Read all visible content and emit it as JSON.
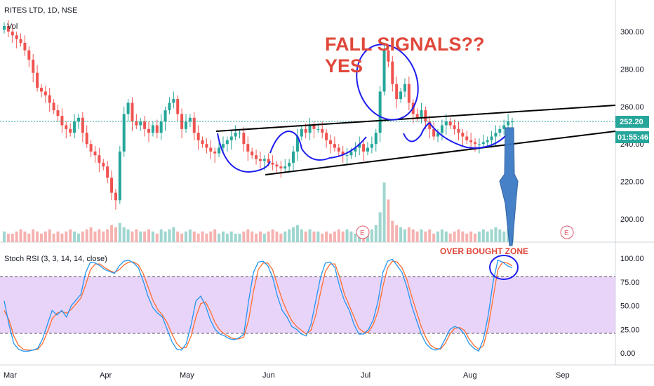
{
  "header": {
    "symbol_title": "RITES LTD, 1D, NSE",
    "vol_label": "Vol"
  },
  "price_axis": {
    "ticks": [
      "300.00",
      "280.00",
      "260.00",
      "240.00",
      "220.00",
      "200.00"
    ],
    "tick_values": [
      300,
      280,
      260,
      240,
      220,
      200
    ],
    "last_price": "252.20",
    "countdown": "01:55:46"
  },
  "rsi_panel": {
    "label": "Stoch RSI (3, 3, 14, 14, close)",
    "ticks": [
      "100.00",
      "75.00",
      "50.00",
      "25.00",
      "0.00"
    ],
    "tick_values": [
      100,
      75,
      50,
      25,
      0
    ],
    "upper_band": 80,
    "lower_band": 20
  },
  "time_axis": {
    "labels": [
      "Mar",
      "Apr",
      "May",
      "Jun",
      "Jul",
      "Aug",
      "Sep"
    ]
  },
  "annotations": {
    "fall_signals": "FALL SIGNALS??",
    "yes": "YES",
    "over_bought": "OVER BOUGHT ZONE",
    "earnings_marker": "E"
  },
  "colors": {
    "up": "#26a69a",
    "down": "#ef5350",
    "vol_up": "#9fd6cf",
    "vol_down": "#f5b2b0",
    "price_tag": "#26a69a",
    "rsi_k": "#2196f3",
    "rsi_d": "#ff6d2e",
    "rsi_band": "#e1c6f7",
    "annotation": "#e0473a",
    "circle": "#1d1df0",
    "arrow": "#3d7bc6"
  },
  "chart_data": {
    "type": "candlestick",
    "title": "RITES LTD, 1D, NSE",
    "ylim": [
      190,
      310
    ],
    "x_months": [
      "Mar",
      "Apr",
      "May",
      "Jun",
      "Jul",
      "Aug",
      "Sep"
    ],
    "close_series": [
      303,
      300,
      298,
      296,
      294,
      290,
      285,
      278,
      270,
      268,
      266,
      262,
      258,
      255,
      250,
      248,
      246,
      252,
      254,
      246,
      240,
      236,
      234,
      230,
      228,
      222,
      214,
      210,
      236,
      256,
      262,
      252,
      250,
      252,
      248,
      246,
      250,
      246,
      252,
      258,
      262,
      264,
      256,
      248,
      252,
      254,
      246,
      242,
      240,
      238,
      236,
      235,
      238,
      240,
      242,
      244,
      246,
      246,
      240,
      236,
      234,
      232,
      231,
      232,
      230,
      229,
      228,
      227,
      228,
      230,
      236,
      244,
      248,
      246,
      250,
      248,
      248,
      246,
      242,
      240,
      238,
      236,
      234,
      234,
      236,
      238,
      240,
      236,
      238,
      240,
      246,
      268,
      290,
      284,
      272,
      264,
      268,
      272,
      262,
      256,
      254,
      258,
      252,
      248,
      244,
      246,
      250,
      252,
      250,
      248,
      246,
      244,
      242,
      241,
      240,
      240,
      241,
      242,
      244,
      246,
      248,
      250,
      252,
      252
    ],
    "volume_series": [
      5,
      4,
      4,
      5,
      6,
      5,
      4,
      6,
      5,
      4,
      5,
      6,
      4,
      5,
      4,
      5,
      6,
      5,
      4,
      5,
      6,
      7,
      5,
      6,
      5,
      6,
      8,
      7,
      9,
      7,
      6,
      5,
      6,
      5,
      5,
      6,
      5,
      4,
      6,
      5,
      6,
      7,
      5,
      4,
      5,
      6,
      5,
      4,
      5,
      4,
      5,
      6,
      4,
      5,
      4,
      5,
      4,
      4,
      5,
      6,
      5,
      4,
      5,
      4,
      5,
      6,
      5,
      4,
      5,
      6,
      7,
      8,
      6,
      5,
      6,
      5,
      5,
      4,
      5,
      4,
      5,
      6,
      5,
      6,
      5,
      4,
      5,
      4,
      5,
      6,
      8,
      14,
      28,
      20,
      10,
      8,
      7,
      6,
      7,
      6,
      5,
      6,
      5,
      6,
      4,
      5,
      6,
      5,
      4,
      5,
      6,
      5,
      4,
      5,
      4,
      5,
      6,
      5,
      6,
      7,
      6,
      5,
      6,
      5
    ],
    "stoch_k": [
      55,
      30,
      10,
      4,
      2,
      2,
      3,
      5,
      15,
      30,
      45,
      40,
      45,
      38,
      50,
      56,
      62,
      85,
      96,
      95,
      92,
      88,
      86,
      84,
      92,
      97,
      98,
      95,
      90,
      76,
      60,
      48,
      42,
      38,
      25,
      12,
      4,
      3,
      10,
      30,
      55,
      60,
      50,
      35,
      25,
      20,
      18,
      15,
      14,
      16,
      20,
      55,
      85,
      96,
      97,
      92,
      80,
      60,
      45,
      38,
      28,
      25,
      20,
      18,
      30,
      55,
      80,
      95,
      96,
      90,
      70,
      55,
      45,
      30,
      20,
      20,
      25,
      35,
      55,
      85,
      97,
      99,
      92,
      85,
      70,
      50,
      35,
      20,
      10,
      5,
      3,
      5,
      15,
      25,
      28,
      26,
      20,
      10,
      5,
      2,
      15,
      40,
      75,
      98,
      96,
      92,
      90
    ],
    "stoch_d": [
      45,
      35,
      18,
      8,
      4,
      3,
      3,
      4,
      10,
      22,
      36,
      42,
      44,
      42,
      46,
      52,
      58,
      72,
      88,
      94,
      94,
      90,
      87,
      85,
      88,
      93,
      96,
      96,
      93,
      84,
      70,
      56,
      46,
      40,
      32,
      20,
      10,
      5,
      6,
      18,
      38,
      52,
      54,
      44,
      32,
      24,
      20,
      17,
      15,
      15,
      17,
      35,
      65,
      88,
      95,
      95,
      88,
      72,
      56,
      44,
      34,
      28,
      24,
      20,
      24,
      40,
      64,
      86,
      94,
      94,
      80,
      62,
      50,
      38,
      26,
      22,
      22,
      30,
      44,
      70,
      90,
      97,
      96,
      90,
      78,
      60,
      44,
      28,
      16,
      8,
      5,
      4,
      10,
      20,
      26,
      27,
      24,
      15,
      8,
      4,
      8,
      28,
      58,
      88,
      96,
      95,
      92
    ]
  }
}
